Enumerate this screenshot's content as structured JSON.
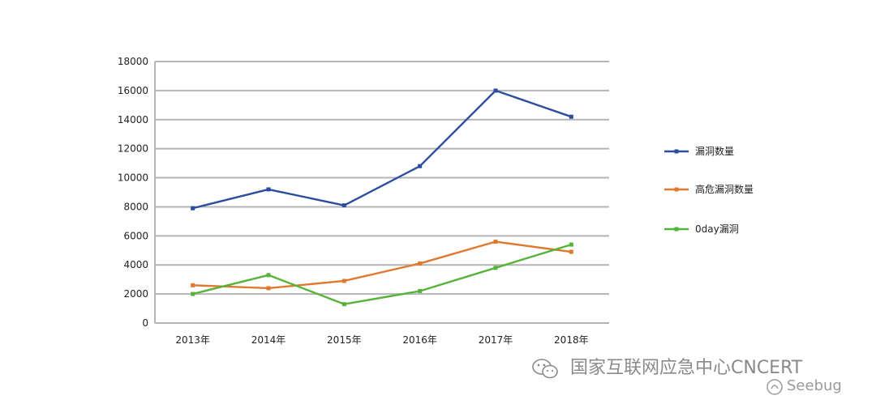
{
  "chart_data": {
    "type": "line",
    "categories": [
      "2013年",
      "2014年",
      "2015年",
      "2016年",
      "2017年",
      "2018年"
    ],
    "series": [
      {
        "name": "漏洞数量",
        "color": "#2e4c9e",
        "values": [
          7900,
          9200,
          8100,
          10800,
          16000,
          14200
        ]
      },
      {
        "name": "高危漏洞数量",
        "color": "#e0782e",
        "values": [
          2600,
          2400,
          2900,
          4100,
          5600,
          4900
        ]
      },
      {
        "name": "0day漏洞",
        "color": "#56b339",
        "values": [
          2000,
          3300,
          1300,
          2200,
          3800,
          5400
        ]
      }
    ],
    "ylim": [
      0,
      18000
    ],
    "yticks": [
      0,
      2000,
      4000,
      6000,
      8000,
      10000,
      12000,
      14000,
      16000,
      18000
    ],
    "grid": true,
    "legend_position": "right"
  },
  "watermark": {
    "text": "国家互联网应急中心CNCERT",
    "sub": "Seebug"
  }
}
